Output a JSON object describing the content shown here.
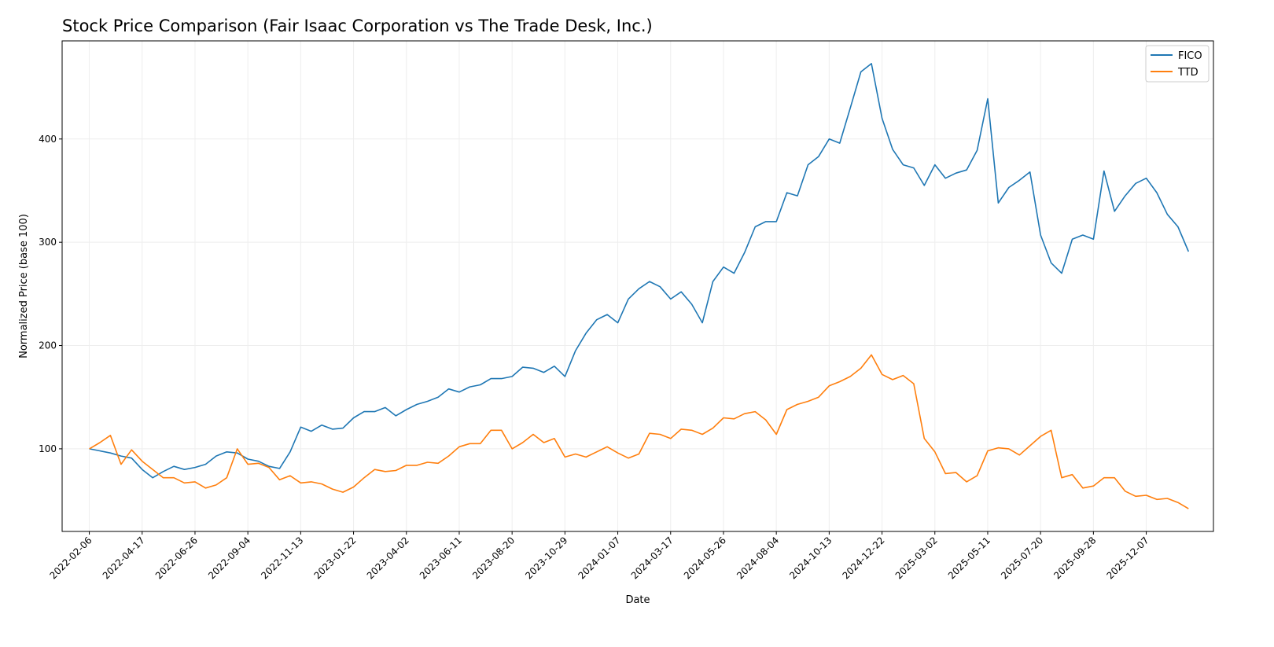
{
  "chart_data": {
    "type": "line",
    "title": "Stock Price Comparison (Fair Isaac Corporation vs The Trade Desk, Inc.)",
    "xlabel": "Date",
    "ylabel": "Normalized Price (base 100)",
    "ylim": [
      20,
      495
    ],
    "xlim": [
      "2022-01-01",
      "2026-03-06"
    ],
    "yticks": [
      100,
      200,
      300,
      400
    ],
    "xticks": [
      "2022-02-06",
      "2022-04-17",
      "2022-06-26",
      "2022-09-04",
      "2022-11-13",
      "2023-01-22",
      "2023-04-02",
      "2023-06-11",
      "2023-08-20",
      "2023-10-29",
      "2024-01-07",
      "2024-03-17",
      "2024-05-26",
      "2024-08-04",
      "2024-10-13",
      "2024-12-22",
      "2025-03-02",
      "2025-05-11",
      "2025-07-20",
      "2025-09-28",
      "2025-12-07"
    ],
    "grid": true,
    "legend_position": "top-right",
    "x": [
      "2022-02-06",
      "2022-02-20",
      "2022-03-06",
      "2022-03-20",
      "2022-04-03",
      "2022-04-17",
      "2022-05-01",
      "2022-05-15",
      "2022-05-29",
      "2022-06-12",
      "2022-06-26",
      "2022-07-10",
      "2022-07-24",
      "2022-08-07",
      "2022-08-21",
      "2022-09-04",
      "2022-09-18",
      "2022-10-02",
      "2022-10-16",
      "2022-10-30",
      "2022-11-13",
      "2022-11-27",
      "2022-12-11",
      "2022-12-25",
      "2023-01-08",
      "2023-01-22",
      "2023-02-05",
      "2023-02-19",
      "2023-03-05",
      "2023-03-19",
      "2023-04-02",
      "2023-04-16",
      "2023-04-30",
      "2023-05-14",
      "2023-05-28",
      "2023-06-11",
      "2023-06-25",
      "2023-07-09",
      "2023-07-23",
      "2023-08-06",
      "2023-08-20",
      "2023-09-03",
      "2023-09-17",
      "2023-10-01",
      "2023-10-15",
      "2023-10-29",
      "2023-11-12",
      "2023-11-26",
      "2023-12-10",
      "2023-12-24",
      "2024-01-07",
      "2024-01-21",
      "2024-02-04",
      "2024-02-18",
      "2024-03-03",
      "2024-03-17",
      "2024-03-31",
      "2024-04-14",
      "2024-04-28",
      "2024-05-12",
      "2024-05-26",
      "2024-06-09",
      "2024-06-23",
      "2024-07-07",
      "2024-07-21",
      "2024-08-04",
      "2024-08-18",
      "2024-09-01",
      "2024-09-15",
      "2024-09-29",
      "2024-10-13",
      "2024-10-27",
      "2024-11-10",
      "2024-11-24",
      "2024-12-08",
      "2024-12-22",
      "2025-01-05",
      "2025-01-19",
      "2025-02-02",
      "2025-02-16",
      "2025-03-02",
      "2025-03-16",
      "2025-03-30",
      "2025-04-13",
      "2025-04-27",
      "2025-05-11",
      "2025-05-25",
      "2025-06-08",
      "2025-06-22",
      "2025-07-06",
      "2025-07-20",
      "2025-08-03",
      "2025-08-17",
      "2025-08-31",
      "2025-09-14",
      "2025-09-28",
      "2025-10-12",
      "2025-10-26",
      "2025-11-09",
      "2025-11-23",
      "2025-12-07",
      "2025-12-21",
      "2026-01-04",
      "2026-01-18",
      "2026-02-01"
    ],
    "series": [
      {
        "name": "FICO",
        "color": "#1f77b4",
        "values": [
          100,
          98,
          96,
          93,
          91,
          80,
          72,
          78,
          83,
          80,
          82,
          85,
          93,
          97,
          96,
          90,
          88,
          83,
          81,
          97,
          121,
          117,
          123,
          119,
          120,
          130,
          136,
          136,
          140,
          132,
          138,
          143,
          146,
          150,
          158,
          155,
          160,
          162,
          168,
          168,
          170,
          179,
          178,
          174,
          180,
          170,
          195,
          212,
          225,
          230,
          222,
          245,
          255,
          262,
          257,
          245,
          252,
          240,
          222,
          262,
          276,
          270,
          290,
          315,
          320,
          320,
          348,
          345,
          375,
          383,
          400,
          396,
          430,
          465,
          473,
          420,
          390,
          375,
          372,
          355,
          375,
          362,
          367,
          370,
          389,
          439,
          338,
          353,
          360,
          368,
          307,
          280,
          270,
          303,
          307,
          303,
          369,
          330,
          345,
          357,
          362,
          348,
          327,
          315,
          291
        ]
      },
      {
        "name": "TTD",
        "color": "#ff7f0e",
        "values": [
          100,
          106,
          113,
          85,
          99,
          88,
          80,
          72,
          72,
          67,
          68,
          62,
          65,
          72,
          100,
          85,
          86,
          82,
          70,
          74,
          67,
          68,
          66,
          61,
          58,
          63,
          72,
          80,
          78,
          79,
          84,
          84,
          87,
          86,
          93,
          102,
          105,
          105,
          118,
          118,
          100,
          106,
          114,
          106,
          110,
          92,
          95,
          92,
          97,
          102,
          96,
          91,
          95,
          115,
          114,
          110,
          119,
          118,
          114,
          120,
          130,
          129,
          134,
          136,
          128,
          114,
          138,
          143,
          146,
          150,
          161,
          165,
          170,
          178,
          191,
          172,
          167,
          171,
          163,
          110,
          97,
          76,
          77,
          68,
          74,
          98,
          101,
          100,
          94,
          103,
          112,
          118,
          72,
          75,
          62,
          64,
          72,
          72,
          59,
          54,
          55,
          51,
          52,
          48,
          42
        ]
      }
    ]
  }
}
